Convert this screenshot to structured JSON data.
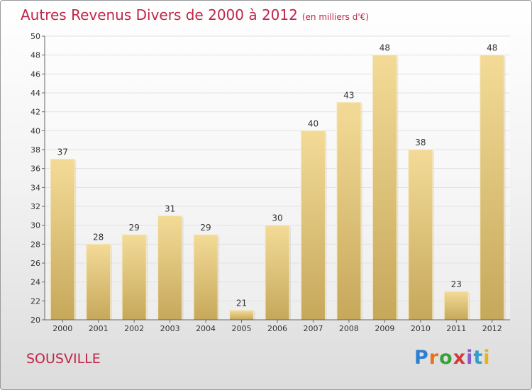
{
  "chart_data": {
    "type": "bar",
    "title": "Autres Revenus Divers de 2000 à 2012",
    "subtitle": "(en milliers d'€)",
    "categories": [
      "2000",
      "2001",
      "2002",
      "2003",
      "2004",
      "2005",
      "2006",
      "2007",
      "2008",
      "2009",
      "2010",
      "2011",
      "2012"
    ],
    "values": [
      37,
      28,
      29,
      31,
      29,
      21,
      30,
      40,
      43,
      48,
      38,
      23,
      48
    ],
    "ylim": [
      20,
      50
    ],
    "yticks": [
      20,
      22,
      24,
      26,
      28,
      30,
      32,
      34,
      36,
      38,
      40,
      42,
      44,
      46,
      48,
      50
    ],
    "grid": true,
    "bar_color": "#e8cd86",
    "bar_color_dark": "#c7a95c"
  },
  "footer": {
    "place": "SOUSVILLE",
    "logo_text": "Proxiti",
    "title_color": "#c0254a"
  }
}
